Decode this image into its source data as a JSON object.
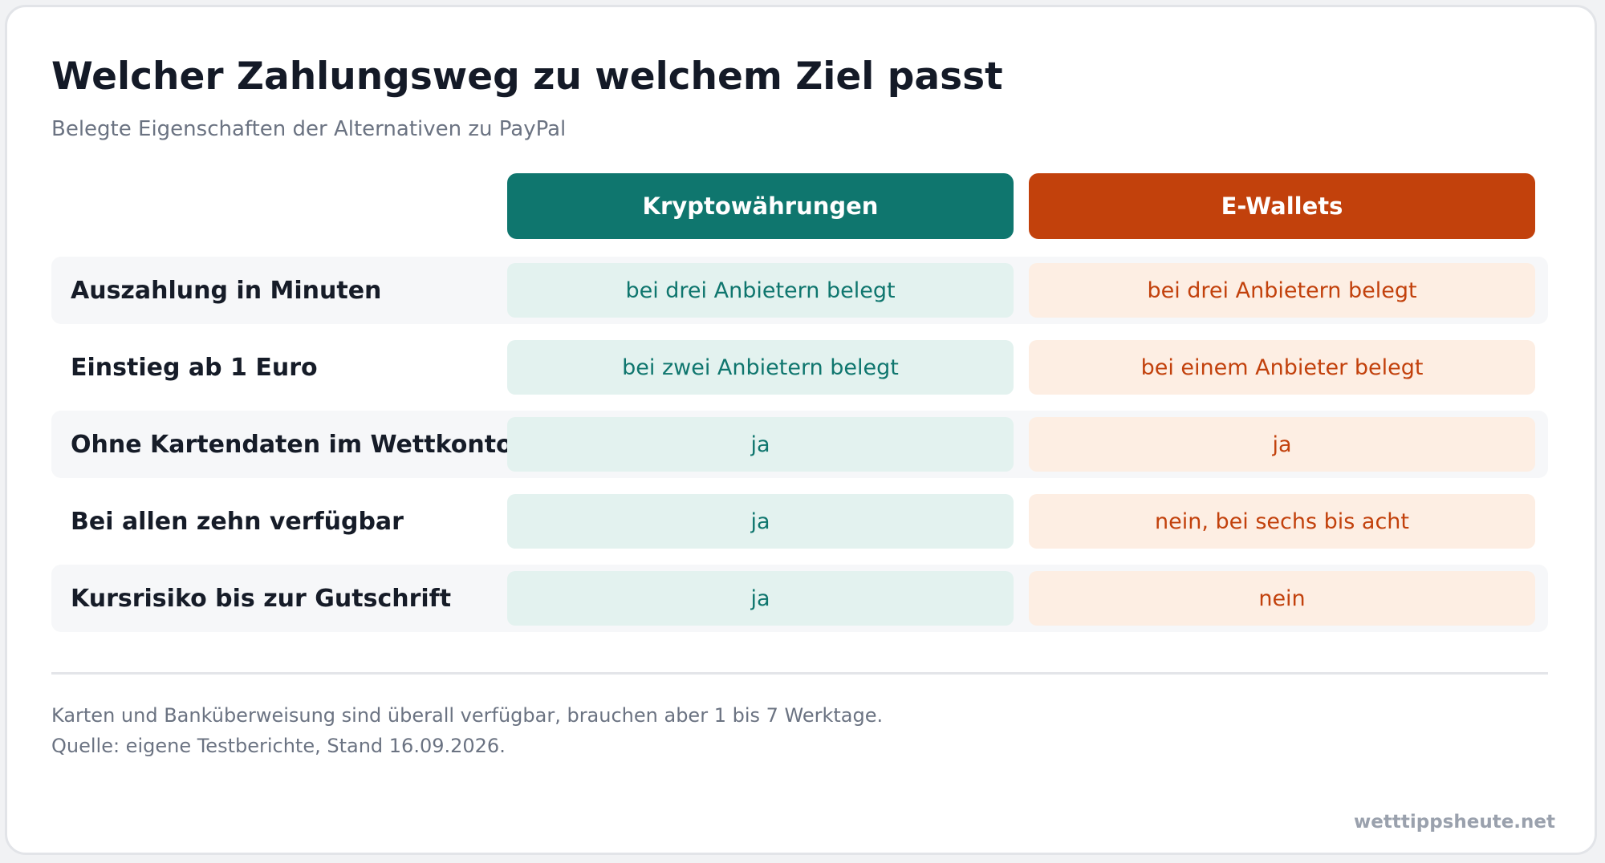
{
  "chart_data": {
    "type": "table",
    "title": "Welcher Zahlungsweg zu welchem Ziel passt",
    "subtitle": "Belegte Eigenschaften der Alternativen zu PayPal",
    "columns": [
      {
        "name": "Kryptowährungen",
        "color": "#0f766e",
        "cell_bg": "#e3f2ef",
        "cell_text": "#0f766e"
      },
      {
        "name": "E-Wallets",
        "color": "#c2410c",
        "cell_bg": "#fdeee3",
        "cell_text": "#c2410c"
      }
    ],
    "rows": [
      {
        "label": "Auszahlung in Minuten",
        "values": [
          "bei drei Anbietern belegt",
          "bei drei Anbietern belegt"
        ]
      },
      {
        "label": "Einstieg ab 1 Euro",
        "values": [
          "bei zwei Anbietern belegt",
          "bei einem Anbieter belegt"
        ]
      },
      {
        "label": "Ohne Kartendaten im Wettkonto",
        "values": [
          "ja",
          "ja"
        ]
      },
      {
        "label": "Bei allen zehn verfügbar",
        "values": [
          "ja",
          "nein, bei sechs bis acht"
        ]
      },
      {
        "label": "Kursrisiko bis zur Gutschrift",
        "values": [
          "ja",
          "nein"
        ]
      }
    ],
    "row_band_colors": [
      "#f6f7f9",
      "#ffffff"
    ]
  },
  "footer": {
    "note": "Karten und Banküberweisung sind überall verfügbar, brauchen aber 1 bis 7 Werktage.",
    "source": "Quelle: eigene Testberichte, Stand 16.09.2026.",
    "brand": "wetttippsheute.net"
  }
}
